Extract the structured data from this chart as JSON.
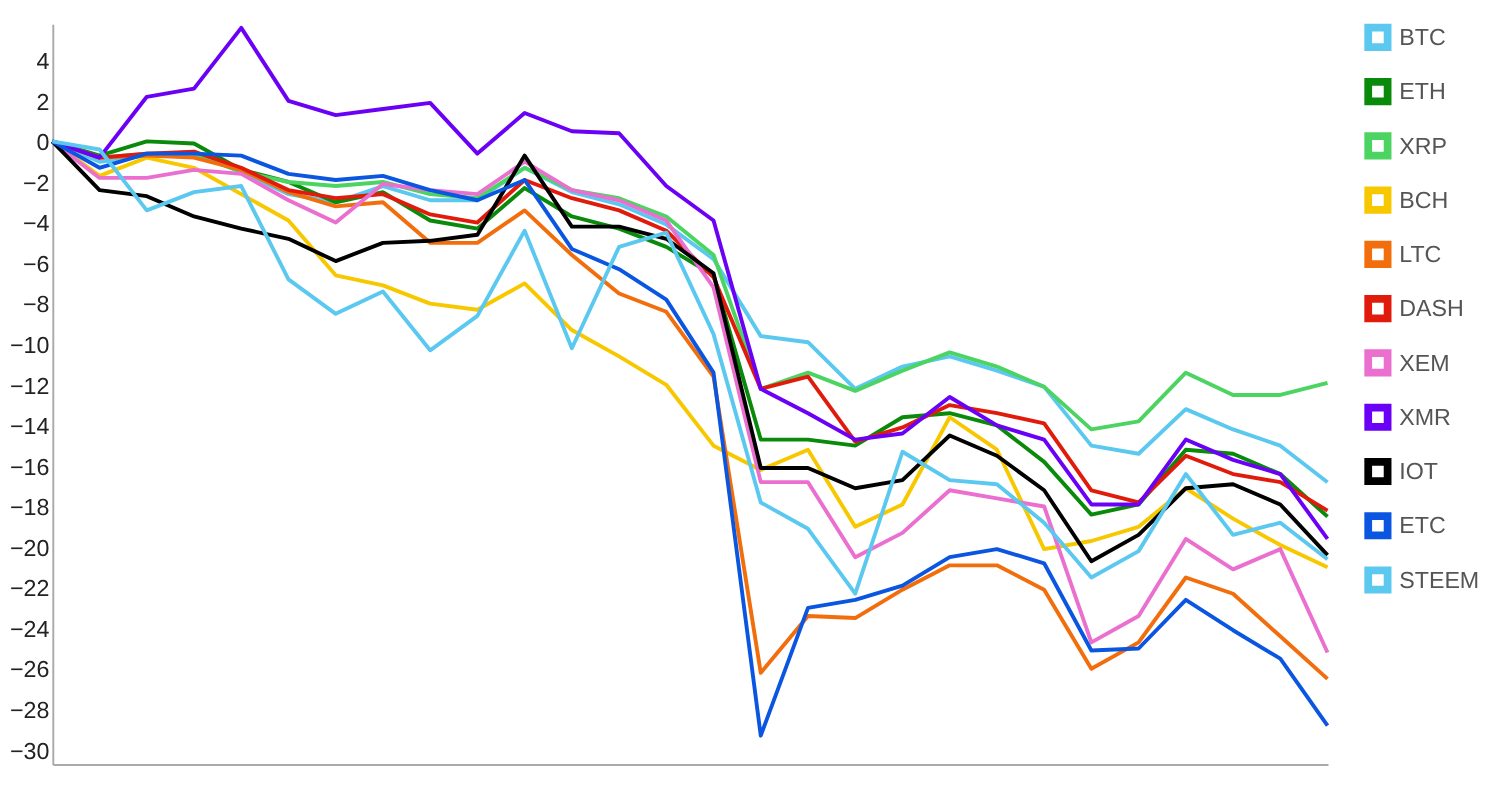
{
  "chart_data": {
    "type": "line",
    "categories": [
      null,
      null,
      null,
      null,
      null,
      null,
      null,
      null,
      null,
      null,
      null,
      null,
      null,
      null,
      null,
      null,
      null,
      null,
      null,
      null,
      null,
      null,
      null,
      null,
      null,
      null,
      null,
      null
    ],
    "ylim": [
      -30.7,
      5.8
    ],
    "yticks": [
      -30,
      -28,
      -26,
      -24,
      -22,
      -20,
      -18,
      -16,
      -14,
      -12,
      -10,
      -8,
      -6,
      -4,
      -2,
      0,
      2,
      4
    ],
    "grid": false,
    "legend": "right",
    "tick_labels": "y",
    "series": [
      {
        "name": "BTC",
        "color": "#5bc8f0",
        "values": [
          0,
          -1.0,
          -0.7,
          -0.6,
          -1.5,
          -2.6,
          -3.0,
          -2.2,
          -2.9,
          -2.9,
          -1.3,
          -2.5,
          -3.1,
          -4.1,
          -5.8,
          -9.6,
          -9.9,
          -12.2,
          -11.1,
          -10.6,
          -11.3,
          -12.1,
          -15.0,
          -15.4,
          -13.2,
          -14.2,
          -15.0,
          -16.8
        ]
      },
      {
        "name": "ETH",
        "color": "#0a8a0a",
        "values": [
          0,
          -0.7,
          0,
          -0.1,
          -1.4,
          -2.0,
          -3.0,
          -2.5,
          -3.9,
          -4.3,
          -2.3,
          -3.7,
          -4.3,
          -5.2,
          -6.6,
          -14.7,
          -14.7,
          -15.0,
          -13.6,
          -13.4,
          -14.0,
          -15.8,
          -18.4,
          -17.9,
          -15.2,
          -15.4,
          -16.4,
          -18.5
        ]
      },
      {
        "name": "XRP",
        "color": "#4cd463",
        "values": [
          0,
          -0.8,
          -0.6,
          -0.6,
          -1.5,
          -2.0,
          -2.2,
          -2.0,
          -2.6,
          -2.8,
          -1.3,
          -2.4,
          -2.8,
          -3.7,
          -5.6,
          -12.2,
          -11.4,
          -12.3,
          -11.3,
          -10.4,
          -11.1,
          -12.1,
          -14.2,
          -13.8,
          -11.4,
          -12.5,
          -12.5,
          -11.9
        ]
      },
      {
        "name": "BCH",
        "color": "#f7c800",
        "values": [
          0,
          -1.7,
          -0.8,
          -1.3,
          -2.6,
          -3.9,
          -6.6,
          -7.1,
          -8.0,
          -8.3,
          -7.0,
          -9.3,
          -10.6,
          -12.0,
          -15.0,
          -16.2,
          -15.2,
          -19.0,
          -17.9,
          -13.6,
          -15.2,
          -20.1,
          -19.7,
          -19.0,
          -17.1,
          -18.6,
          -19.9,
          -21.0
        ]
      },
      {
        "name": "LTC",
        "color": "#f26d0c",
        "values": [
          0,
          -0.8,
          -0.7,
          -0.8,
          -1.4,
          -2.5,
          -3.2,
          -3.0,
          -5.0,
          -5.0,
          -3.4,
          -5.6,
          -7.5,
          -8.4,
          -11.6,
          -26.2,
          -23.4,
          -23.5,
          -22.1,
          -20.9,
          -20.9,
          -22.1,
          -26.0,
          -24.7,
          -21.5,
          -22.3,
          -24.4,
          -26.5
        ]
      },
      {
        "name": "DASH",
        "color": "#e01b0b",
        "values": [
          0,
          -0.8,
          -0.6,
          -0.5,
          -1.3,
          -2.4,
          -2.8,
          -2.6,
          -3.6,
          -4.0,
          -1.9,
          -2.8,
          -3.4,
          -4.4,
          -6.7,
          -12.2,
          -11.6,
          -14.8,
          -14.1,
          -13.0,
          -13.4,
          -13.9,
          -17.2,
          -17.8,
          -15.5,
          -16.4,
          -16.8,
          -18.2
        ]
      },
      {
        "name": "XEM",
        "color": "#ea6fcf",
        "values": [
          0,
          -1.8,
          -1.8,
          -1.4,
          -1.6,
          -2.9,
          -4.0,
          -2.1,
          -2.4,
          -2.6,
          -1.0,
          -2.4,
          -2.9,
          -3.9,
          -7.2,
          -16.8,
          -16.8,
          -20.5,
          -19.3,
          -17.2,
          -17.6,
          -18.0,
          -24.7,
          -23.4,
          -19.6,
          -21.1,
          -20.1,
          -25.2
        ]
      },
      {
        "name": "XMR",
        "color": "#6a00f5",
        "values": [
          0,
          -0.8,
          2.2,
          2.6,
          5.6,
          2.0,
          1.3,
          1.6,
          1.9,
          -0.6,
          1.4,
          0.5,
          0.4,
          -2.2,
          -3.9,
          -12.2,
          -13.4,
          -14.7,
          -14.4,
          -12.6,
          -14.0,
          -14.7,
          -17.9,
          -17.9,
          -14.7,
          -15.7,
          -16.4,
          -19.6
        ]
      },
      {
        "name": "IOT",
        "color": "#000000",
        "values": [
          0,
          -2.4,
          -2.7,
          -3.7,
          -4.3,
          -4.8,
          -5.9,
          -5.0,
          -4.9,
          -4.6,
          -0.7,
          -4.2,
          -4.2,
          -4.8,
          -6.5,
          -16.1,
          -16.1,
          -17.1,
          -16.7,
          -14.5,
          -15.5,
          -17.2,
          -20.7,
          -19.4,
          -17.1,
          -16.9,
          -17.9,
          -20.4
        ]
      },
      {
        "name": "ETC",
        "color": "#0b56e0",
        "values": [
          0,
          -1.3,
          -0.6,
          -0.6,
          -0.7,
          -1.6,
          -1.9,
          -1.7,
          -2.4,
          -2.9,
          -1.9,
          -5.3,
          -6.3,
          -7.8,
          -11.4,
          -29.3,
          -23.0,
          -22.6,
          -21.9,
          -20.5,
          -20.1,
          -20.8,
          -25.1,
          -25.0,
          -22.6,
          -24.1,
          -25.5,
          -28.8
        ]
      },
      {
        "name": "STEEM",
        "color": "#5bc8f0",
        "values": [
          0,
          -0.4,
          -3.4,
          -2.5,
          -2.2,
          -6.8,
          -8.5,
          -7.4,
          -10.3,
          -8.6,
          -4.4,
          -10.2,
          -5.2,
          -4.5,
          -9.5,
          -17.8,
          -19.1,
          -22.3,
          -15.3,
          -16.7,
          -16.9,
          -18.8,
          -21.5,
          -20.2,
          -16.4,
          -19.4,
          -18.8,
          -20.6
        ]
      }
    ]
  }
}
